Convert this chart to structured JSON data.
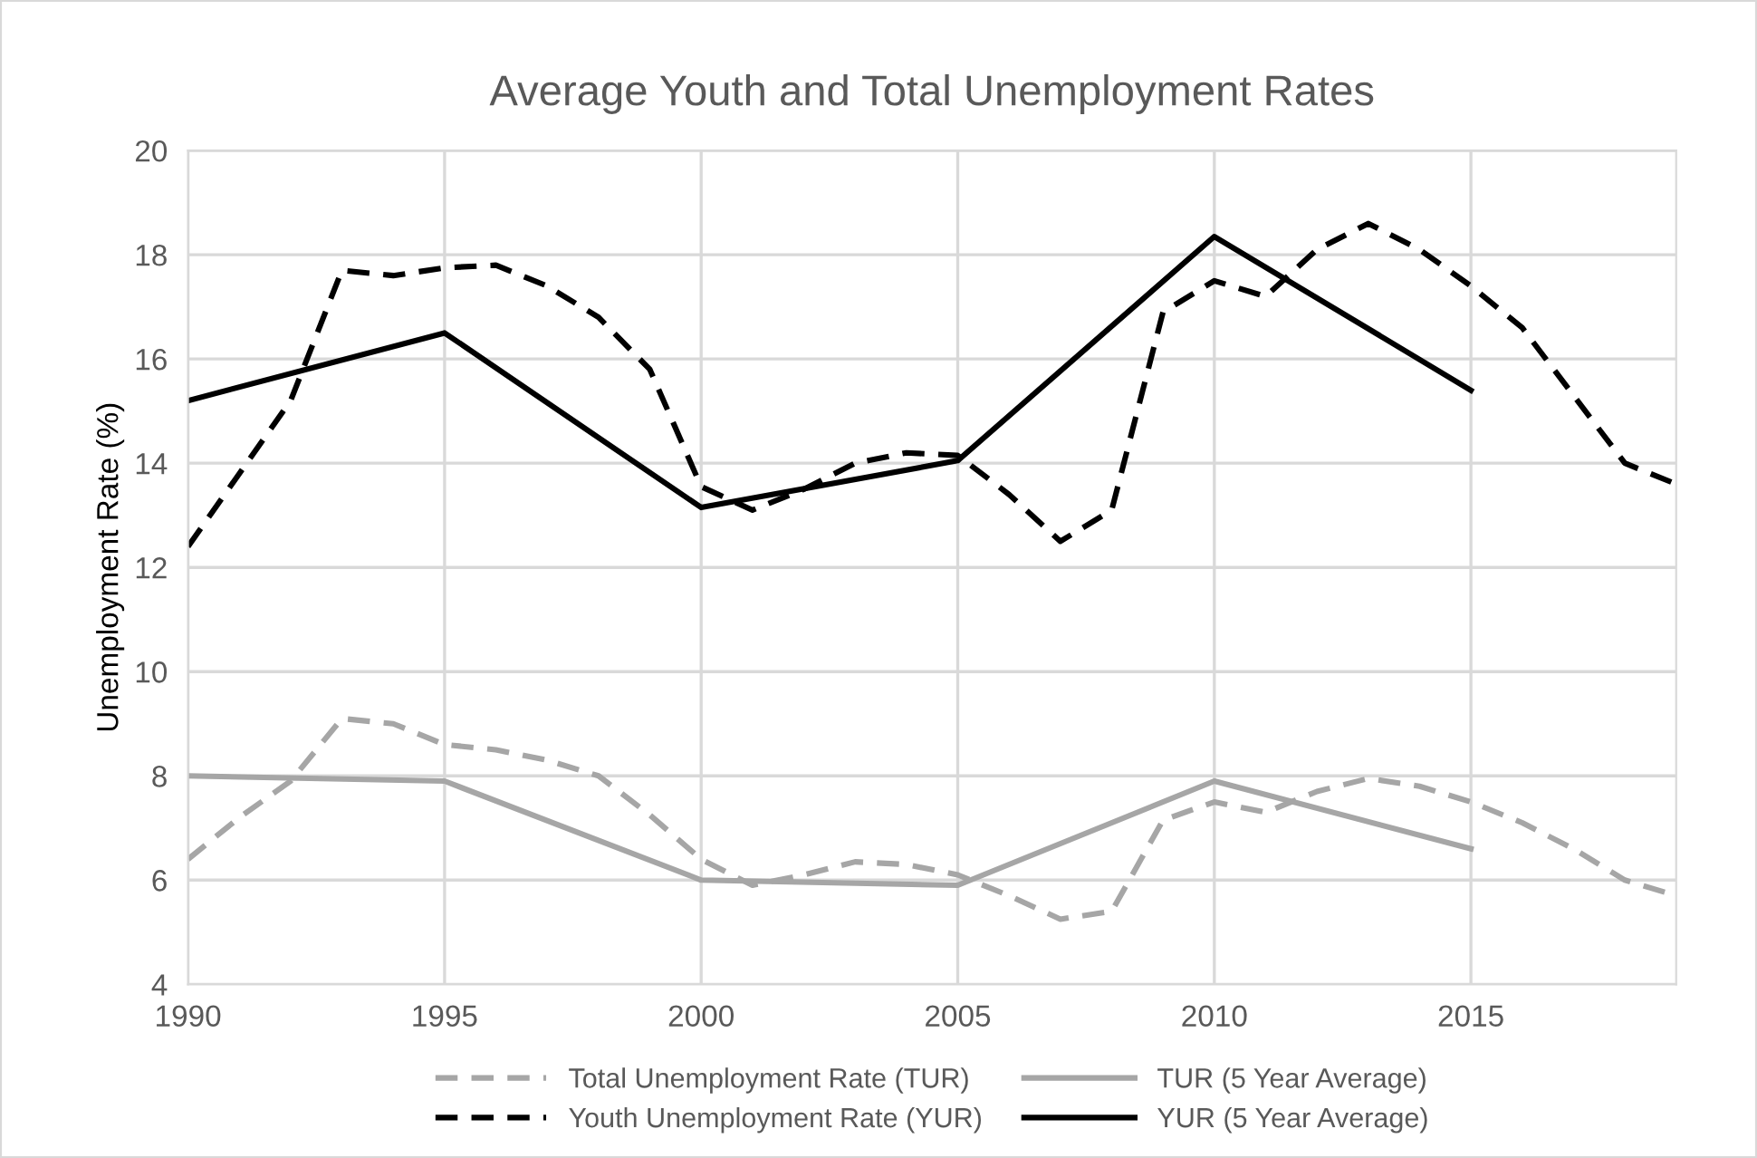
{
  "chart_data": {
    "type": "line",
    "title": "Average Youth and Total Unemployment Rates",
    "ylabel": "Unemployment Rate (%)",
    "x": [
      1990,
      1991,
      1992,
      1993,
      1994,
      1995,
      1996,
      1997,
      1998,
      1999,
      2000,
      2001,
      2002,
      2003,
      2004,
      2005,
      2006,
      2007,
      2008,
      2009,
      2010,
      2011,
      2012,
      2013,
      2014,
      2015,
      2016,
      2017,
      2018,
      2019
    ],
    "series": [
      {
        "name": "Total Unemployment Rate (TUR)",
        "color": "#a6a6a6",
        "line_style": "dashed",
        "values": [
          6.4,
          7.2,
          7.9,
          9.1,
          9.0,
          8.6,
          8.5,
          8.3,
          8.0,
          7.25,
          6.4,
          5.9,
          6.1,
          6.35,
          6.3,
          6.1,
          5.7,
          5.25,
          5.4,
          7.15,
          7.5,
          7.3,
          7.7,
          7.95,
          7.8,
          7.5,
          7.1,
          6.6,
          6.0,
          5.7
        ]
      },
      {
        "name": "TUR (5 Year Average)",
        "color": "#a6a6a6",
        "line_style": "solid",
        "x": [
          1990,
          1995,
          2000,
          2005,
          2010,
          2015
        ],
        "values": [
          8.0,
          7.9,
          6.0,
          5.9,
          7.9,
          6.6
        ]
      },
      {
        "name": "Youth Unemployment Rate (YUR)",
        "color": "#000000",
        "line_style": "dashed",
        "values": [
          12.4,
          13.8,
          15.2,
          17.7,
          17.6,
          17.75,
          17.8,
          17.4,
          16.8,
          15.8,
          13.55,
          13.1,
          13.5,
          14.0,
          14.2,
          14.15,
          13.4,
          12.5,
          13.1,
          16.9,
          17.5,
          17.2,
          18.1,
          18.6,
          18.1,
          17.4,
          16.6,
          15.3,
          14.0,
          13.6
        ]
      },
      {
        "name": "YUR (5 Year Average)",
        "color": "#000000",
        "line_style": "solid",
        "x": [
          1990,
          1995,
          2000,
          2005,
          2010,
          2015
        ],
        "values": [
          15.2,
          16.5,
          13.15,
          14.05,
          18.35,
          15.4
        ]
      }
    ],
    "xlim": [
      1990,
      2019
    ],
    "xticks": [
      1990,
      1995,
      2000,
      2005,
      2010,
      2015
    ],
    "ylim": [
      4,
      20
    ],
    "yticks": [
      4,
      6,
      8,
      10,
      12,
      14,
      16,
      18,
      20
    ],
    "grid": true,
    "legend": "bottom"
  }
}
